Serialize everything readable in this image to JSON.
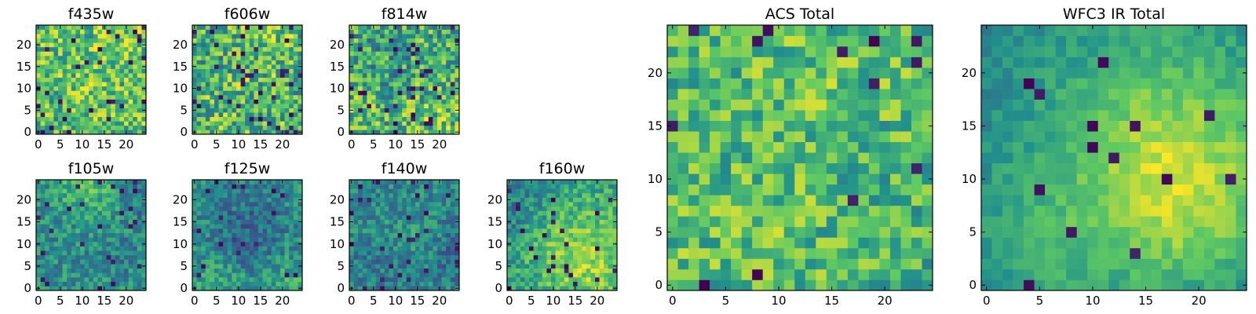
{
  "figure": {
    "background": "#ffffff"
  },
  "colormap": {
    "name": "viridis",
    "stops": [
      "#440154",
      "#3b528b",
      "#21918c",
      "#5ec962",
      "#fde725"
    ]
  },
  "chart_data": [
    {
      "type": "heatmap",
      "title": "f435w",
      "grid_size": 25,
      "xticks": [
        0,
        5,
        10,
        15,
        20
      ],
      "yticks": [
        0,
        5,
        10,
        15,
        20
      ],
      "xlim": [
        -0.5,
        24.5
      ],
      "ylim": [
        -0.5,
        24.5
      ],
      "value_range": [
        0,
        1
      ],
      "seed": 11,
      "base": 0.7,
      "amp": 0.2,
      "noise": 0.55,
      "low_fraction": 0.04
    },
    {
      "type": "heatmap",
      "title": "f606w",
      "grid_size": 25,
      "xticks": [
        0,
        5,
        10,
        15,
        20
      ],
      "yticks": [
        0,
        5,
        10,
        15,
        20
      ],
      "xlim": [
        -0.5,
        24.5
      ],
      "ylim": [
        -0.5,
        24.5
      ],
      "value_range": [
        0,
        1
      ],
      "seed": 23,
      "base": 0.66,
      "amp": 0.2,
      "noise": 0.6,
      "low_fraction": 0.06
    },
    {
      "type": "heatmap",
      "title": "f814w",
      "grid_size": 25,
      "xticks": [
        0,
        5,
        10,
        15,
        20
      ],
      "yticks": [
        0,
        5,
        10,
        15,
        20
      ],
      "xlim": [
        -0.5,
        24.5
      ],
      "ylim": [
        -0.5,
        24.5
      ],
      "value_range": [
        0,
        1
      ],
      "seed": 37,
      "base": 0.64,
      "amp": 0.2,
      "noise": 0.6,
      "low_fraction": 0.06
    },
    {
      "type": "heatmap",
      "title": "f105w",
      "grid_size": 25,
      "xticks": [
        0,
        5,
        10,
        15,
        20
      ],
      "yticks": [
        0,
        5,
        10,
        15,
        20
      ],
      "xlim": [
        -0.5,
        24.5
      ],
      "ylim": [
        -0.5,
        24.5
      ],
      "value_range": [
        0,
        1
      ],
      "seed": 41,
      "base": 0.5,
      "amp": 0.45,
      "noise": 0.35,
      "low_fraction": 0.05
    },
    {
      "type": "heatmap",
      "title": "f125w",
      "grid_size": 25,
      "xticks": [
        0,
        5,
        10,
        15,
        20
      ],
      "yticks": [
        0,
        5,
        10,
        15,
        20
      ],
      "xlim": [
        -0.5,
        24.5
      ],
      "ylim": [
        -0.5,
        24.5
      ],
      "value_range": [
        0,
        1
      ],
      "seed": 53,
      "base": 0.52,
      "amp": 0.45,
      "noise": 0.35,
      "low_fraction": 0.04
    },
    {
      "type": "heatmap",
      "title": "f140w",
      "grid_size": 25,
      "xticks": [
        0,
        5,
        10,
        15,
        20
      ],
      "yticks": [
        0,
        5,
        10,
        15,
        20
      ],
      "xlim": [
        -0.5,
        24.5
      ],
      "ylim": [
        -0.5,
        24.5
      ],
      "value_range": [
        0,
        1
      ],
      "seed": 67,
      "base": 0.48,
      "amp": 0.48,
      "noise": 0.33,
      "low_fraction": 0.04
    },
    {
      "type": "heatmap",
      "title": "f160w",
      "grid_size": 25,
      "xticks": [
        0,
        5,
        10,
        15,
        20
      ],
      "yticks": [
        0,
        5,
        10,
        15,
        20
      ],
      "xlim": [
        -0.5,
        24.5
      ],
      "ylim": [
        -0.5,
        24.5
      ],
      "value_range": [
        0,
        1
      ],
      "seed": 79,
      "base": 0.5,
      "amp": 0.45,
      "noise": 0.35,
      "low_fraction": 0.05
    },
    {
      "type": "heatmap",
      "title": "ACS Total",
      "grid_size": 25,
      "xticks": [
        0,
        5,
        10,
        15,
        20
      ],
      "yticks": [
        0,
        5,
        10,
        15,
        20
      ],
      "xlim": [
        -0.5,
        24.5
      ],
      "ylim": [
        -0.5,
        24.5
      ],
      "value_range": [
        0,
        1
      ],
      "seed": 97,
      "base": 0.68,
      "amp": 0.15,
      "noise": 0.45,
      "low_fraction": 0.03
    },
    {
      "type": "heatmap",
      "title": "WFC3 IR Total",
      "grid_size": 25,
      "xticks": [
        0,
        5,
        10,
        15,
        20
      ],
      "yticks": [
        0,
        5,
        10,
        15,
        20
      ],
      "xlim": [
        -0.5,
        24.5
      ],
      "ylim": [
        -0.5,
        24.5
      ],
      "value_range": [
        0,
        1
      ],
      "seed": 131,
      "base": 0.45,
      "amp": 0.55,
      "noise": 0.18,
      "low_fraction": 0.03
    }
  ]
}
